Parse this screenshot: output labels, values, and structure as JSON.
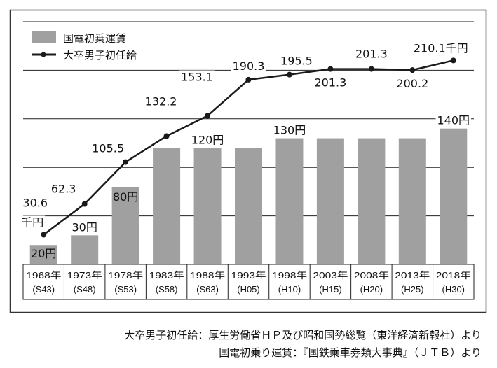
{
  "chart_data": {
    "type": "bar+line",
    "categories": [
      "1968年",
      "1973年",
      "1978年",
      "1983年",
      "1988年",
      "1993年",
      "1998年",
      "2003年",
      "2008年",
      "2013年",
      "2018年"
    ],
    "sub_categories": [
      "(S43)",
      "(S48)",
      "(S53)",
      "(S58)",
      "(S63)",
      "(H05)",
      "(H10)",
      "(H15)",
      "(H20)",
      "(H25)",
      "(H30)"
    ],
    "ylim": [
      0,
      250
    ],
    "grid": true,
    "legend_placement": "top-left",
    "series": [
      {
        "name": "国電初乗運賃",
        "type": "bar",
        "unit": "円",
        "color": "#a0a0a0",
        "values": [
          20,
          30,
          80,
          120,
          120,
          120,
          130,
          130,
          130,
          130,
          140
        ],
        "labels": [
          "20円",
          "30円",
          "80円",
          "",
          "120円",
          "",
          "130円",
          "",
          "",
          "",
          "140円"
        ]
      },
      {
        "name": "大卒男子初任給",
        "type": "line",
        "unit": "千円",
        "color": "#1a1a1a",
        "values": [
          30.6,
          62.3,
          105.5,
          132.2,
          153.1,
          190.3,
          195.5,
          201.3,
          201.3,
          200.2,
          210.1
        ],
        "labels": [
          "30.6",
          "62.3",
          "105.5",
          "132.2",
          "153.1",
          "190.3",
          "195.5",
          "201.3",
          "201.3",
          "200.2",
          "210.1千円"
        ],
        "first_label_unit": "千円"
      }
    ]
  },
  "footer": {
    "line1": "大卒男子初任給：厚生労働省ＨＰ及び昭和国勢総覧（東洋経済新報社）より",
    "line2": "国電初乗り運賃：『国鉄乗車券類大事典』（ＪＴＢ）より"
  }
}
